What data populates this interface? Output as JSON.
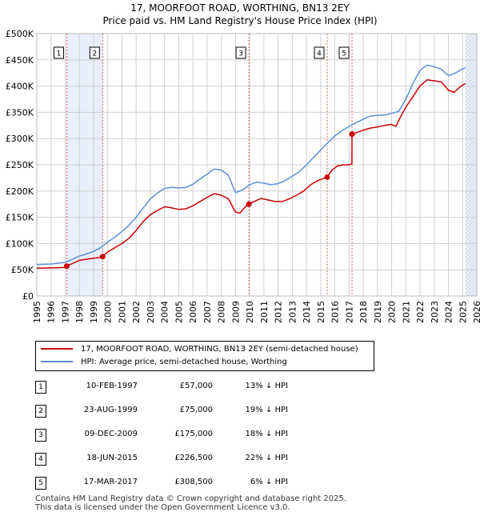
{
  "title_line1": "17, MOORFOOT ROAD, WORTHING, BN13 2EY",
  "title_line2": "Price paid vs. HM Land Registry's House Price Index (HPI)",
  "colors": {
    "price_line": "#cc0000",
    "hpi_line": "#5b8ed6",
    "shade": "#e8eefb",
    "vline": "#e06060",
    "grid": "#d0d0d0"
  },
  "legend": {
    "price": "17, MOORFOOT ROAD, WORTHING, BN13 2EY (semi-detached house)",
    "hpi": "HPI: Average price, semi-detached house, Worthing"
  },
  "sales": [
    {
      "num": "1",
      "date": "10-FEB-1997",
      "price": "£57,000",
      "diff": "13% ↓ HPI"
    },
    {
      "num": "2",
      "date": "23-AUG-1999",
      "price": "£75,000",
      "diff": "19% ↓ HPI"
    },
    {
      "num": "3",
      "date": "09-DEC-2009",
      "price": "£175,000",
      "diff": "18% ↓ HPI"
    },
    {
      "num": "4",
      "date": "18-JUN-2015",
      "price": "£226,500",
      "diff": "22% ↓ HPI"
    },
    {
      "num": "5",
      "date": "17-MAR-2017",
      "price": "£308,500",
      "diff": "6% ↓ HPI"
    }
  ],
  "footer": {
    "line1": "Contains HM Land Registry data © Crown copyright and database right 2025.",
    "line2": "This data is licensed under the Open Government Licence v3.0."
  },
  "chart_data": {
    "type": "line",
    "xlim": [
      1995,
      2026
    ],
    "ylim": [
      0,
      500000
    ],
    "x_ticks": [
      "1995",
      "1996",
      "1997",
      "1998",
      "1999",
      "2000",
      "2001",
      "2002",
      "2003",
      "2004",
      "2005",
      "2006",
      "2007",
      "2008",
      "2009",
      "2010",
      "2011",
      "2012",
      "2013",
      "2014",
      "2015",
      "2016",
      "2017",
      "2018",
      "2019",
      "2020",
      "2021",
      "2022",
      "2023",
      "2024",
      "2025",
      "2026"
    ],
    "y_ticks": [
      {
        "value": 0,
        "label": "£0"
      },
      {
        "value": 50000,
        "label": "£50K"
      },
      {
        "value": 100000,
        "label": "£100K"
      },
      {
        "value": 150000,
        "label": "£150K"
      },
      {
        "value": 200000,
        "label": "£200K"
      },
      {
        "value": 250000,
        "label": "£250K"
      },
      {
        "value": 300000,
        "label": "£300K"
      },
      {
        "value": 350000,
        "label": "£350K"
      },
      {
        "value": 400000,
        "label": "£400K"
      },
      {
        "value": 450000,
        "label": "£450K"
      },
      {
        "value": 500000,
        "label": "£500K"
      }
    ],
    "shaded_periods": [
      [
        1997.11,
        1999.64
      ],
      [
        2025.2,
        2026
      ]
    ],
    "sale_markers": [
      {
        "label": "1",
        "x": 1997.11,
        "y": 57000
      },
      {
        "label": "2",
        "x": 1999.64,
        "y": 75000
      },
      {
        "label": "3",
        "x": 2009.94,
        "y": 175000
      },
      {
        "label": "4",
        "x": 2015.46,
        "y": 226500
      },
      {
        "label": "5",
        "x": 2017.21,
        "y": 308500
      }
    ],
    "series": [
      {
        "name": "17, MOORFOOT ROAD, WORTHING, BN13 2EY (semi-detached house)",
        "x": [
          1995,
          1996,
          1997.1,
          1997.11,
          1997.6,
          1998,
          1998.5,
          1999,
          1999.63,
          1999.64,
          2000,
          2000.5,
          2001,
          2001.5,
          2002,
          2002.5,
          2003,
          2003.5,
          2004,
          2004.5,
          2005,
          2005.5,
          2006,
          2006.5,
          2007,
          2007.5,
          2008,
          2008.5,
          2009,
          2009.3,
          2009.7,
          2009.93,
          2009.94,
          2010.3,
          2010.8,
          2011.3,
          2011.8,
          2012.3,
          2012.8,
          2013.3,
          2013.8,
          2014.3,
          2014.8,
          2015.2,
          2015.46,
          2015.8,
          2016.2,
          2016.6,
          2017.0,
          2017.2,
          2017.21,
          2017.6,
          2018,
          2018.5,
          2019,
          2019.5,
          2020,
          2020.3,
          2020.6,
          2021,
          2021.5,
          2022,
          2022.5,
          2023,
          2023.5,
          2024,
          2024.4,
          2024.8,
          2025.2
        ],
        "values": [
          53000,
          53500,
          54500,
          57000,
          63000,
          68000,
          70000,
          72000,
          74000,
          75000,
          84000,
          92000,
          100000,
          110000,
          125000,
          142000,
          155000,
          163000,
          170000,
          168000,
          165000,
          166000,
          172000,
          180000,
          188000,
          195000,
          192000,
          185000,
          160000,
          158000,
          170000,
          174000,
          175000,
          180000,
          186000,
          183000,
          180000,
          180000,
          185000,
          192000,
          200000,
          212000,
          220000,
          224000,
          226500,
          240000,
          248000,
          250000,
          250000,
          252000,
          308500,
          312000,
          316000,
          320000,
          322000,
          325000,
          327000,
          323000,
          340000,
          360000,
          380000,
          400000,
          412000,
          410000,
          408000,
          392000,
          388000,
          398000,
          405000
        ]
      },
      {
        "name": "HPI: Average price, semi-detached house, Worthing",
        "x": [
          1995,
          1996,
          1997,
          1997.5,
          1998,
          1998.5,
          1999,
          1999.5,
          2000,
          2000.5,
          2001,
          2001.5,
          2002,
          2002.5,
          2003,
          2003.5,
          2004,
          2004.5,
          2005,
          2005.5,
          2006,
          2006.5,
          2007,
          2007.5,
          2008,
          2008.5,
          2009,
          2009.5,
          2010,
          2010.5,
          2011,
          2011.5,
          2012,
          2012.5,
          2013,
          2013.5,
          2014,
          2014.5,
          2015,
          2015.5,
          2016,
          2016.5,
          2017,
          2017.5,
          2018,
          2018.5,
          2019,
          2019.5,
          2020,
          2020.5,
          2021,
          2021.5,
          2022,
          2022.5,
          2023,
          2023.5,
          2024,
          2024.5,
          2025,
          2025.2
        ],
        "values": [
          60000,
          61000,
          64000,
          70000,
          76000,
          80000,
          85000,
          92000,
          103000,
          112000,
          123000,
          135000,
          150000,
          168000,
          185000,
          196000,
          205000,
          207000,
          206000,
          207000,
          213000,
          223000,
          232000,
          242000,
          240000,
          230000,
          197000,
          202000,
          212000,
          217000,
          215000,
          212000,
          214000,
          220000,
          228000,
          237000,
          250000,
          264000,
          278000,
          292000,
          305000,
          315000,
          323000,
          330000,
          337000,
          343000,
          344000,
          345000,
          348000,
          352000,
          375000,
          405000,
          430000,
          440000,
          437000,
          432000,
          420000,
          425000,
          433000,
          435000
        ]
      }
    ]
  }
}
